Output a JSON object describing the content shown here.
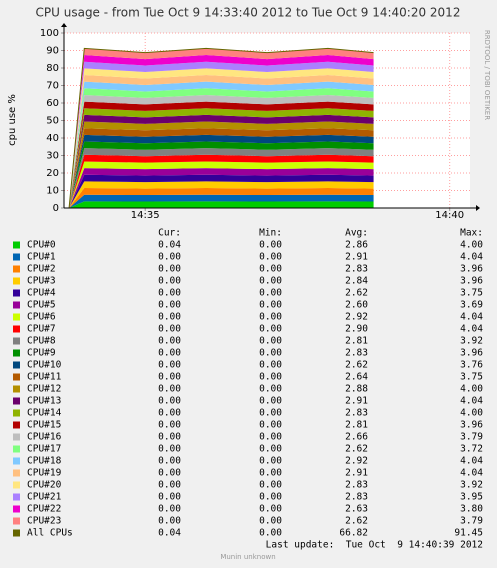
{
  "chart_data": {
    "type": "stacked-area",
    "title": "CPU usage - from Tue Oct  9 14:33:40 2012 to Tue Oct  9 14:40:20 2012",
    "y_label": "cpu use %",
    "watermark": "RRDTOOL / TOBI OETIKER",
    "x": [
      "14:33:45",
      "14:34",
      "14:35",
      "14:36",
      "14:37",
      "14:38",
      "14:38:45"
    ],
    "xlim": [
      "14:33:40",
      "14:40:20"
    ],
    "xticks": [
      "14:35",
      "14:40"
    ],
    "ylim": [
      0,
      100
    ],
    "yticks": [
      0,
      10,
      20,
      30,
      40,
      50,
      60,
      70,
      80,
      90,
      100
    ],
    "grid": true,
    "series": [
      {
        "name": "CPU#0",
        "color": "#00cc00",
        "values": [
          0,
          3.8,
          3.7,
          3.8,
          3.7,
          3.8,
          3.7
        ]
      },
      {
        "name": "CPU#1",
        "color": "#0066b3",
        "values": [
          0,
          3.8,
          3.7,
          3.8,
          3.7,
          3.8,
          3.7
        ]
      },
      {
        "name": "CPU#2",
        "color": "#ff8000",
        "values": [
          0,
          3.8,
          3.7,
          3.8,
          3.7,
          3.8,
          3.7
        ]
      },
      {
        "name": "CPU#3",
        "color": "#ffcc00",
        "values": [
          0,
          3.8,
          3.7,
          3.8,
          3.7,
          3.8,
          3.7
        ]
      },
      {
        "name": "CPU#4",
        "color": "#330099",
        "values": [
          0,
          3.8,
          3.7,
          3.8,
          3.7,
          3.8,
          3.7
        ]
      },
      {
        "name": "CPU#5",
        "color": "#990099",
        "values": [
          0,
          3.8,
          3.7,
          3.8,
          3.7,
          3.8,
          3.7
        ]
      },
      {
        "name": "CPU#6",
        "color": "#ccff00",
        "values": [
          0,
          3.8,
          3.7,
          3.8,
          3.7,
          3.8,
          3.7
        ]
      },
      {
        "name": "CPU#7",
        "color": "#ff0000",
        "values": [
          0,
          3.8,
          3.7,
          3.8,
          3.7,
          3.8,
          3.7
        ]
      },
      {
        "name": "CPU#8",
        "color": "#808080",
        "values": [
          0,
          3.8,
          3.7,
          3.8,
          3.7,
          3.8,
          3.7
        ]
      },
      {
        "name": "CPU#9",
        "color": "#008f00",
        "values": [
          0,
          3.8,
          3.7,
          3.8,
          3.7,
          3.8,
          3.7
        ]
      },
      {
        "name": "CPU#10",
        "color": "#00487d",
        "values": [
          0,
          3.8,
          3.7,
          3.8,
          3.7,
          3.8,
          3.7
        ]
      },
      {
        "name": "CPU#11",
        "color": "#b35a00",
        "values": [
          0,
          3.8,
          3.7,
          3.8,
          3.7,
          3.8,
          3.7
        ]
      },
      {
        "name": "CPU#12",
        "color": "#b38f00",
        "values": [
          0,
          3.8,
          3.7,
          3.8,
          3.7,
          3.8,
          3.7
        ]
      },
      {
        "name": "CPU#13",
        "color": "#6b006b",
        "values": [
          0,
          3.8,
          3.7,
          3.8,
          3.7,
          3.8,
          3.7
        ]
      },
      {
        "name": "CPU#14",
        "color": "#8fb300",
        "values": [
          0,
          3.8,
          3.7,
          3.8,
          3.7,
          3.8,
          3.7
        ]
      },
      {
        "name": "CPU#15",
        "color": "#b30000",
        "values": [
          0,
          3.8,
          3.7,
          3.8,
          3.7,
          3.8,
          3.7
        ]
      },
      {
        "name": "CPU#16",
        "color": "#bebebe",
        "values": [
          0,
          3.8,
          3.7,
          3.8,
          3.7,
          3.8,
          3.7
        ]
      },
      {
        "name": "CPU#17",
        "color": "#80ff80",
        "values": [
          0,
          3.8,
          3.7,
          3.8,
          3.7,
          3.8,
          3.7
        ]
      },
      {
        "name": "CPU#18",
        "color": "#80c9ff",
        "values": [
          0,
          3.8,
          3.7,
          3.8,
          3.7,
          3.8,
          3.7
        ]
      },
      {
        "name": "CPU#19",
        "color": "#ffc080",
        "values": [
          0,
          3.8,
          3.7,
          3.8,
          3.7,
          3.8,
          3.7
        ]
      },
      {
        "name": "CPU#20",
        "color": "#ffe680",
        "values": [
          0,
          3.8,
          3.7,
          3.8,
          3.7,
          3.8,
          3.7
        ]
      },
      {
        "name": "CPU#21",
        "color": "#aa80ff",
        "values": [
          0,
          3.8,
          3.7,
          3.8,
          3.7,
          3.8,
          3.7
        ]
      },
      {
        "name": "CPU#22",
        "color": "#ee00cc",
        "values": [
          0,
          3.8,
          3.7,
          3.8,
          3.7,
          3.8,
          3.7
        ]
      },
      {
        "name": "CPU#23",
        "color": "#ff8080",
        "values": [
          0,
          3.8,
          3.7,
          3.8,
          3.7,
          3.8,
          3.7
        ]
      },
      {
        "name": "All CPUs",
        "color": "#666600",
        "stacked": false,
        "values": [
          0,
          91.2,
          88.8,
          91.2,
          88.8,
          91.2,
          88.8
        ]
      }
    ],
    "stats": {
      "columns": [
        "Cur:",
        "Min:",
        "Avg:",
        "Max:"
      ],
      "rows": [
        [
          "0.04",
          "0.00",
          "2.86",
          "4.00"
        ],
        [
          "0.00",
          "0.00",
          "2.91",
          "4.04"
        ],
        [
          "0.00",
          "0.00",
          "2.83",
          "3.96"
        ],
        [
          "0.00",
          "0.00",
          "2.84",
          "3.96"
        ],
        [
          "0.00",
          "0.00",
          "2.62",
          "3.75"
        ],
        [
          "0.00",
          "0.00",
          "2.60",
          "3.69"
        ],
        [
          "0.00",
          "0.00",
          "2.92",
          "4.04"
        ],
        [
          "0.00",
          "0.00",
          "2.90",
          "4.04"
        ],
        [
          "0.00",
          "0.00",
          "2.81",
          "3.92"
        ],
        [
          "0.00",
          "0.00",
          "2.83",
          "3.96"
        ],
        [
          "0.00",
          "0.00",
          "2.62",
          "3.76"
        ],
        [
          "0.00",
          "0.00",
          "2.64",
          "3.75"
        ],
        [
          "0.00",
          "0.00",
          "2.88",
          "4.00"
        ],
        [
          "0.00",
          "0.00",
          "2.91",
          "4.04"
        ],
        [
          "0.00",
          "0.00",
          "2.83",
          "4.00"
        ],
        [
          "0.00",
          "0.00",
          "2.81",
          "3.96"
        ],
        [
          "0.00",
          "0.00",
          "2.66",
          "3.79"
        ],
        [
          "0.00",
          "0.00",
          "2.62",
          "3.72"
        ],
        [
          "0.00",
          "0.00",
          "2.92",
          "4.04"
        ],
        [
          "0.00",
          "0.00",
          "2.91",
          "4.04"
        ],
        [
          "0.00",
          "0.00",
          "2.83",
          "3.92"
        ],
        [
          "0.00",
          "0.00",
          "2.83",
          "3.95"
        ],
        [
          "0.00",
          "0.00",
          "2.63",
          "3.80"
        ],
        [
          "0.00",
          "0.00",
          "2.62",
          "3.79"
        ],
        [
          "0.04",
          "0.00",
          "66.82",
          "91.45"
        ]
      ]
    },
    "last_update": "Last update:  Tue Oct  9 14:40:39 2012",
    "footer": "Munin unknown"
  }
}
